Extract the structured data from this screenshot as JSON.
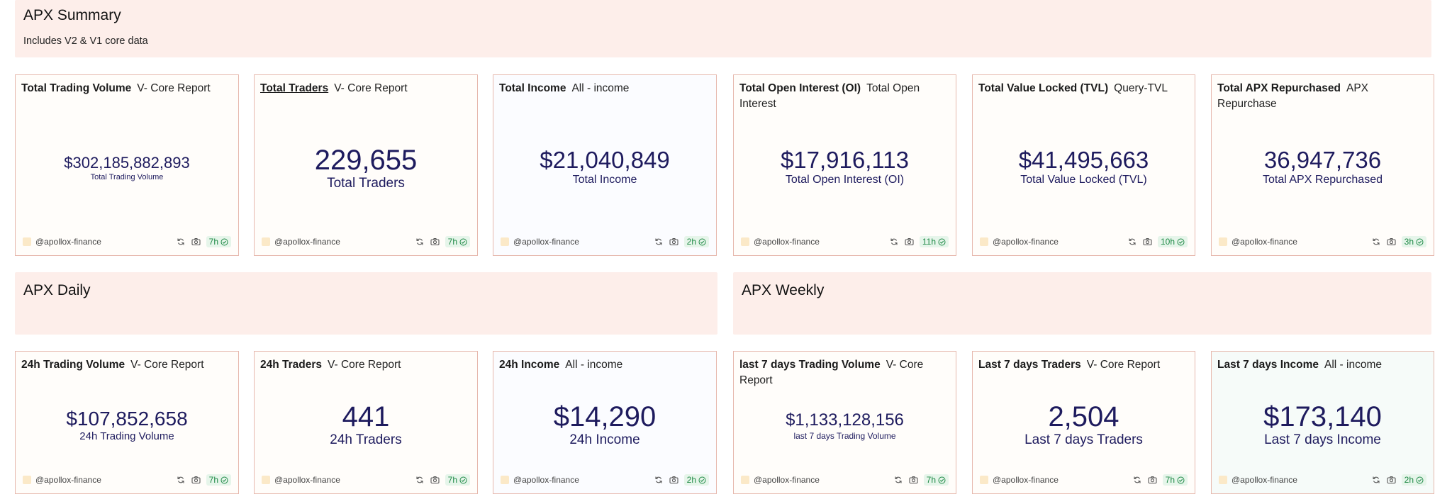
{
  "summary": {
    "title": "APX Summary",
    "subtitle": "Includes V2 & V1 core data"
  },
  "daily": {
    "title": "APX Daily"
  },
  "weekly": {
    "title": "APX Weekly"
  },
  "owner": "@apollox-finance",
  "cards": [
    {
      "name": "Total Trading Volume",
      "query": "V- Core Report",
      "value": "$302,185,882,893",
      "label": "Total Trading Volume",
      "age": "7h"
    },
    {
      "name": "Total Traders",
      "query": "V- Core Report",
      "value": "229,655",
      "label": "Total Traders",
      "age": "7h"
    },
    {
      "name": "Total Income",
      "query": "All - income",
      "value": "$21,040,849",
      "label": "Total Income",
      "age": "2h"
    },
    {
      "name": "Total Open Interest (OI)",
      "query": "Total Open Interest",
      "value": "$17,916,113",
      "label": "Total Open Interest (OI)",
      "age": "11h"
    },
    {
      "name": "Total Value Locked (TVL)",
      "query": "Query-TVL",
      "value": "$41,495,663",
      "label": "Total Value Locked (TVL)",
      "age": "10h"
    },
    {
      "name": "Total APX Repurchased",
      "query": "APX Repurchase",
      "value": "36,947,736",
      "label": "Total APX Repurchased",
      "age": "3h"
    },
    {
      "name": "24h Trading Volume",
      "query": "V- Core Report",
      "value": "$107,852,658",
      "label": "24h Trading Volume",
      "age": "7h"
    },
    {
      "name": "24h Traders",
      "query": "V- Core Report",
      "value": "441",
      "label": "24h Traders",
      "age": "7h"
    },
    {
      "name": "24h Income",
      "query": "All - income",
      "value": "$14,290",
      "label": "24h Income",
      "age": "2h"
    },
    {
      "name": "last 7 days Trading Volume",
      "query": "V- Core Report",
      "value": "$1,133,128,156",
      "label": "last 7 days Trading Volume",
      "age": "7h"
    },
    {
      "name": "Last 7 days Traders",
      "query": "V- Core Report",
      "value": "2,504",
      "label": "Last 7 days Traders",
      "age": "7h"
    },
    {
      "name": "Last 7 days Income",
      "query": "All - income",
      "value": "$173,140",
      "label": "Last 7 days Income",
      "age": "2h"
    }
  ],
  "icons": {
    "refresh": "refresh-icon",
    "camera": "camera-icon",
    "check": "check-circle-icon"
  },
  "colors": {
    "section_bg": "#fdeeea",
    "card_border": "#e6b8ad",
    "value": "#1e1b5e",
    "badge_green": "#1f8a46"
  }
}
